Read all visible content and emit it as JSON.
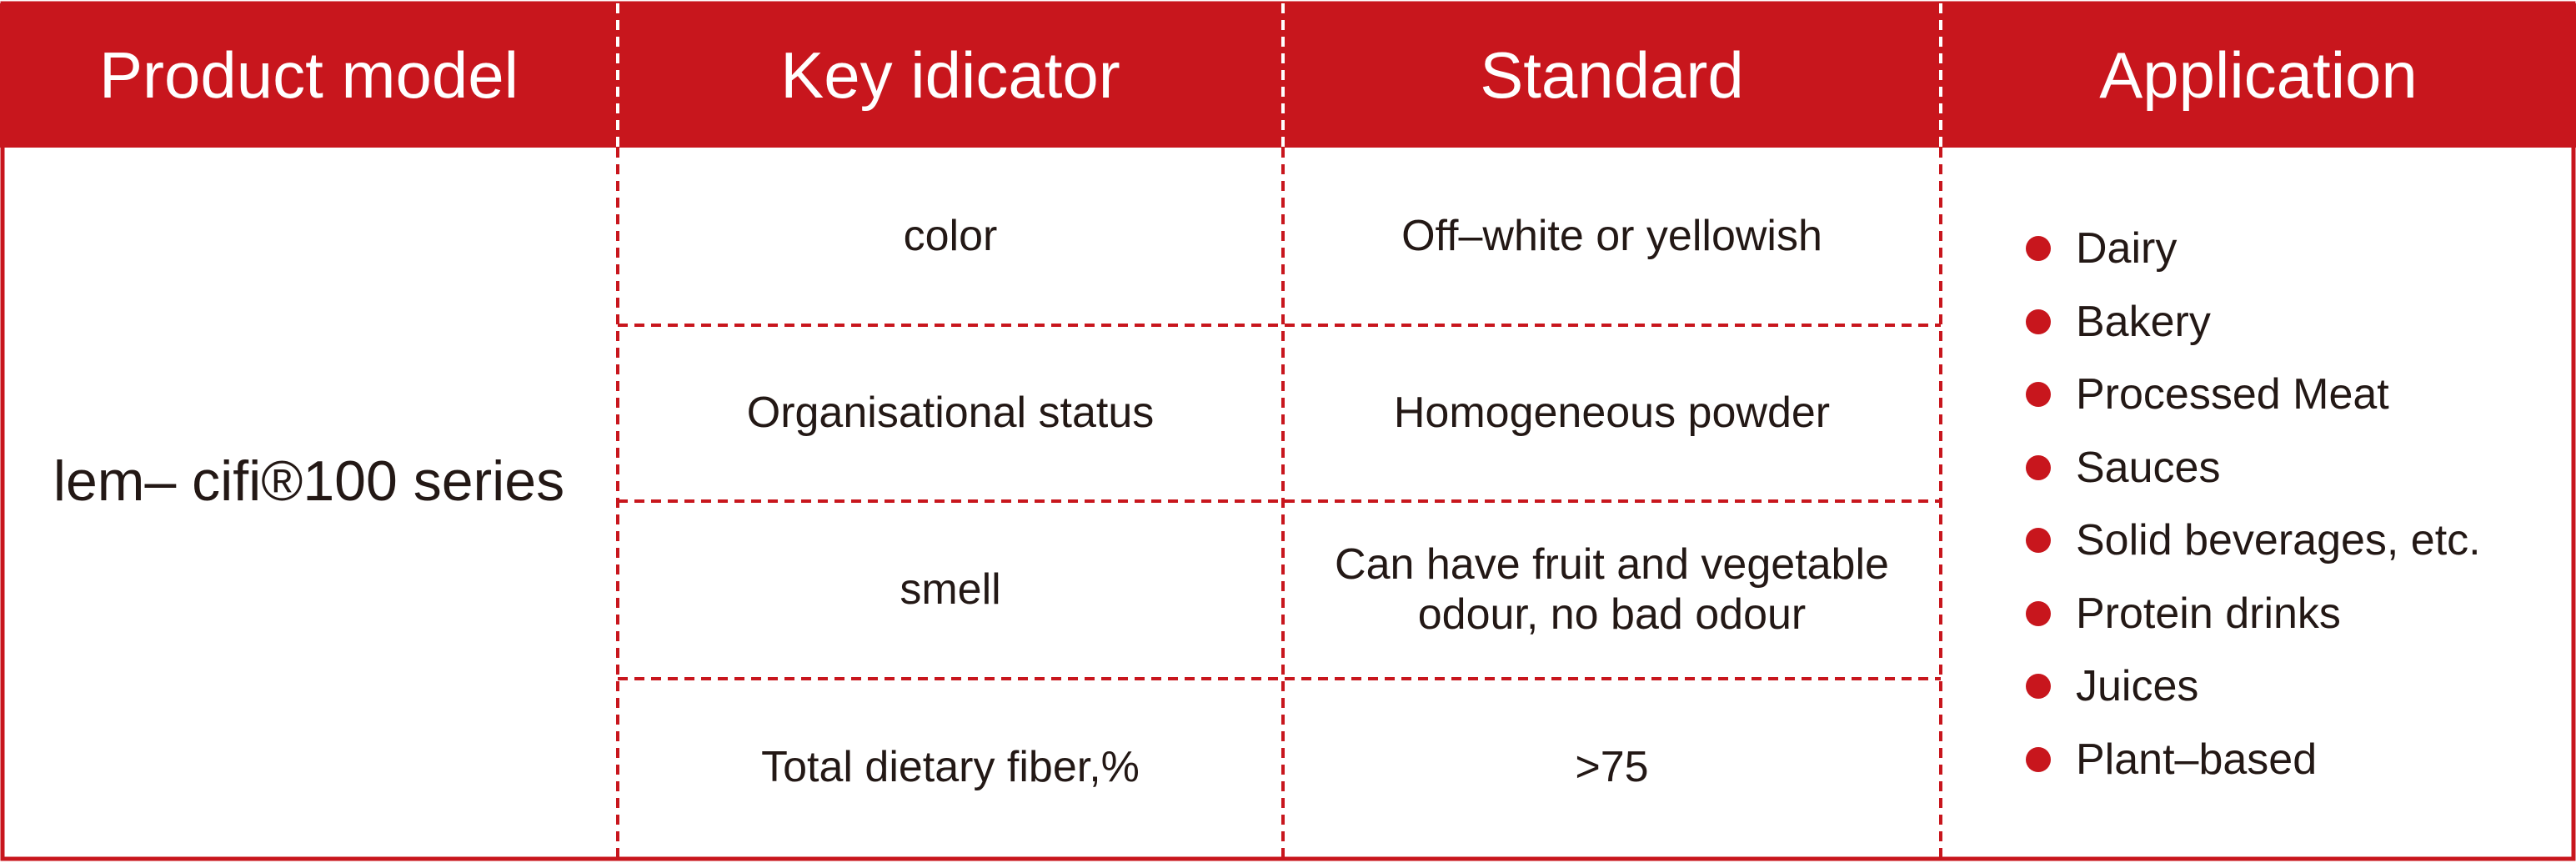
{
  "header": {
    "columns": [
      "Product model",
      "Key idicator",
      "Standard",
      "Application"
    ]
  },
  "product_model": "lem– cifi®100 series",
  "rows": [
    {
      "indicator": "color",
      "standard": "Off–white or yellowish"
    },
    {
      "indicator": "Organisational status",
      "standard": "Homogeneous powder"
    },
    {
      "indicator": "smell",
      "standard": "Can have fruit and vegetable odour, no bad odour"
    },
    {
      "indicator": "Total dietary fiber,%",
      "standard": ">75"
    }
  ],
  "applications": [
    "Dairy",
    "Bakery",
    "Processed Meat",
    "Sauces",
    "Solid beverages, etc.",
    "Protein drinks",
    "Juices",
    "Plant–based"
  ]
}
